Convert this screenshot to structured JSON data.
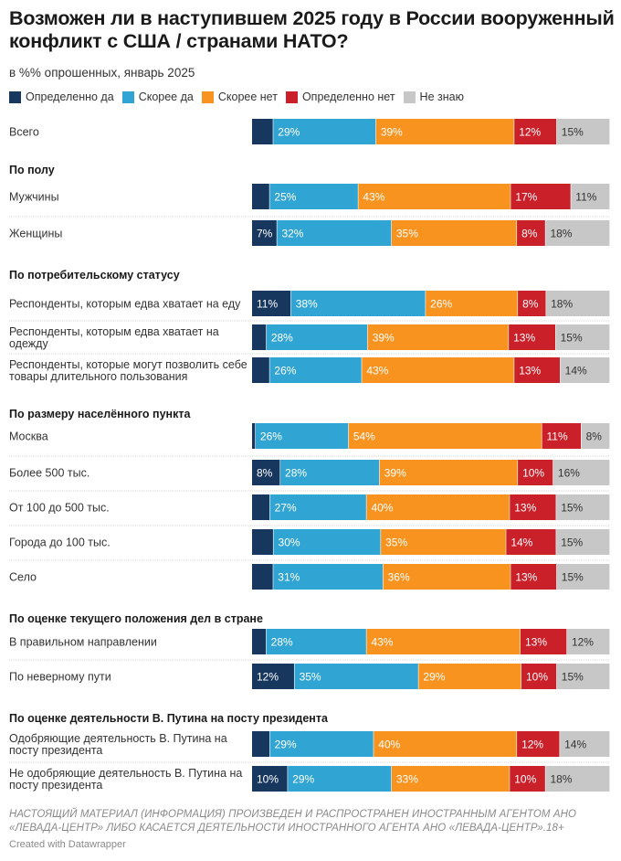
{
  "title": "Возможен ли в наступившем 2025 году в России вооруженный конфликт с США / странами НАТО?",
  "subtitle": "в %% опрошенных, январь 2025",
  "legend": [
    {
      "label": "Определенно да",
      "color": "#17375e"
    },
    {
      "label": "Скорее да",
      "color": "#30a4d2"
    },
    {
      "label": "Скорее нет",
      "color": "#f7931e"
    },
    {
      "label": "Определенно нет",
      "color": "#c9202a"
    },
    {
      "label": "Не знаю",
      "color": "#c7c7c7"
    }
  ],
  "chart_data": {
    "type": "bar",
    "orientation": "horizontal-stacked-100",
    "series_names": [
      "Определенно да",
      "Скорее да",
      "Скорее нет",
      "Определенно нет",
      "Не знаю"
    ],
    "colors": [
      "#17375e",
      "#30a4d2",
      "#f7931e",
      "#c9202a",
      "#c7c7c7"
    ],
    "unit": "%",
    "rows": [
      {
        "kind": "bar",
        "label": [
          "Всего"
        ],
        "values": [
          6,
          29,
          39,
          12,
          15
        ],
        "labels": [
          "",
          "29%",
          "39%",
          "12%",
          "15%"
        ]
      },
      {
        "kind": "header",
        "label": "По полу"
      },
      {
        "kind": "bar",
        "label": [
          "Мужчины"
        ],
        "values": [
          5,
          25,
          43,
          17,
          11
        ],
        "labels": [
          "",
          "25%",
          "43%",
          "17%",
          "11%"
        ]
      },
      {
        "kind": "bar",
        "label": [
          "Женщины"
        ],
        "values": [
          7,
          32,
          35,
          8,
          18
        ],
        "labels": [
          "7%",
          "32%",
          "35%",
          "8%",
          "18%"
        ]
      },
      {
        "kind": "header",
        "label": "По потребительскому статусу"
      },
      {
        "kind": "bar",
        "label": [
          "Респонденты, которым едва хватает на еду"
        ],
        "values": [
          11,
          38,
          26,
          8,
          18
        ],
        "labels": [
          "11%",
          "38%",
          "26%",
          "8%",
          "18%"
        ]
      },
      {
        "kind": "bar",
        "label": [
          "Респонденты, которым едва хватает на",
          "одежду"
        ],
        "values": [
          4,
          28,
          39,
          13,
          15
        ],
        "labels": [
          "",
          "28%",
          "39%",
          "13%",
          "15%"
        ]
      },
      {
        "kind": "bar",
        "label": [
          "Респонденты, которые могут позволить себе",
          "товары длительного пользования"
        ],
        "values": [
          5,
          26,
          43,
          13,
          14
        ],
        "labels": [
          "",
          "26%",
          "43%",
          "13%",
          "14%"
        ]
      },
      {
        "kind": "header",
        "label": "По размеру населённого пункта"
      },
      {
        "kind": "bar",
        "label": [
          "Москва"
        ],
        "values": [
          1,
          26,
          54,
          11,
          8
        ],
        "labels": [
          "",
          "26%",
          "54%",
          "11%",
          "8%"
        ]
      },
      {
        "kind": "bar",
        "label": [
          "Более 500 тыс."
        ],
        "values": [
          8,
          28,
          39,
          10,
          16
        ],
        "labels": [
          "8%",
          "28%",
          "39%",
          "10%",
          "16%"
        ]
      },
      {
        "kind": "bar",
        "label": [
          "От 100 до 500 тыс."
        ],
        "values": [
          5,
          27,
          40,
          13,
          15
        ],
        "labels": [
          "",
          "27%",
          "40%",
          "13%",
          "15%"
        ]
      },
      {
        "kind": "bar",
        "label": [
          "Города до 100 тыс."
        ],
        "values": [
          6,
          30,
          35,
          14,
          15
        ],
        "labels": [
          "",
          "30%",
          "35%",
          "14%",
          "15%"
        ]
      },
      {
        "kind": "bar",
        "label": [
          "Село"
        ],
        "values": [
          6,
          31,
          36,
          13,
          15
        ],
        "labels": [
          "",
          "31%",
          "36%",
          "13%",
          "15%"
        ]
      },
      {
        "kind": "header",
        "label": "По оценке текущего положения дел в стране"
      },
      {
        "kind": "bar",
        "label": [
          "В правильном направлении"
        ],
        "values": [
          4,
          28,
          43,
          13,
          12
        ],
        "labels": [
          "",
          "28%",
          "43%",
          "13%",
          "12%"
        ]
      },
      {
        "kind": "bar",
        "label": [
          "По неверному пути"
        ],
        "values": [
          12,
          35,
          29,
          10,
          15
        ],
        "labels": [
          "12%",
          "35%",
          "29%",
          "10%",
          "15%"
        ]
      },
      {
        "kind": "header",
        "label": "По оценке деятельности В. Путина на посту президента"
      },
      {
        "kind": "bar",
        "label": [
          "Одобряющие деятельность В. Путина на",
          "посту президента"
        ],
        "values": [
          5,
          29,
          40,
          12,
          14
        ],
        "labels": [
          "",
          "29%",
          "40%",
          "12%",
          "14%"
        ]
      },
      {
        "kind": "bar",
        "label": [
          "Не одобряющие деятельность В. Путина на",
          "посту президента"
        ],
        "values": [
          10,
          29,
          33,
          10,
          18
        ],
        "labels": [
          "10%",
          "29%",
          "33%",
          "10%",
          "18%"
        ]
      }
    ]
  },
  "footer": {
    "note": "НАСТОЯЩИЙ МАТЕРИАЛ (ИНФОРМАЦИЯ) ПРОИЗВЕДЕН И РАСПРОСТРАНЕН ИНОСТРАННЫМ АГЕНТОМ АНО «ЛЕВАДА-ЦЕНТР» ЛИБО КАСАЕТСЯ ДЕЯТЕЛЬНОСТИ ИНОСТРАННОГО АГЕНТА АНО «ЛЕВАДА-ЦЕНТР».18+",
    "credit": "Created with Datawrapper"
  }
}
